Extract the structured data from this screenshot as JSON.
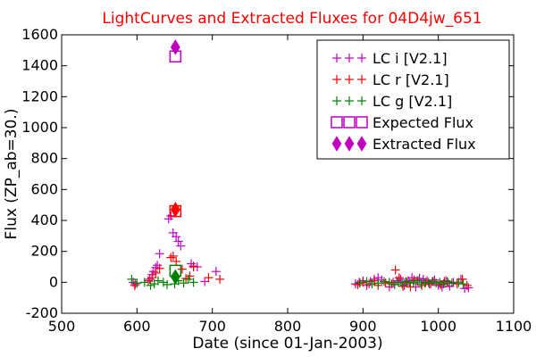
{
  "chart_data": {
    "type": "scatter",
    "title": "LightCurves and Extracted Fluxes for 04D4jw_651",
    "title_color": "#ff0000",
    "xlabel": "Date (since 01-Jan-2003)",
    "ylabel": "Flux (ZP_ab=30.)",
    "xlim": [
      500,
      1100
    ],
    "ylim": [
      -200,
      1600
    ],
    "xticks": [
      500,
      600,
      700,
      800,
      900,
      1000,
      1100
    ],
    "yticks": [
      -200,
      0,
      200,
      400,
      600,
      800,
      1000,
      1200,
      1400,
      1600
    ],
    "legend_position": "top-right",
    "series": [
      {
        "name": "LC i [V2.1]",
        "marker": "plus",
        "color": "#bf00bf",
        "points": [
          [
            595,
            0
          ],
          [
            598,
            -10
          ],
          [
            617,
            20
          ],
          [
            620,
            50
          ],
          [
            622,
            70
          ],
          [
            625,
            95
          ],
          [
            627,
            110
          ],
          [
            630,
            185
          ],
          [
            642,
            410
          ],
          [
            645,
            430
          ],
          [
            648,
            320
          ],
          [
            652,
            295
          ],
          [
            655,
            265
          ],
          [
            658,
            235
          ],
          [
            672,
            120
          ],
          [
            675,
            105
          ],
          [
            680,
            100
          ],
          [
            690,
            5
          ],
          [
            705,
            70
          ],
          [
            890,
            -10
          ],
          [
            895,
            0
          ],
          [
            900,
            10
          ],
          [
            905,
            -20
          ],
          [
            910,
            5
          ],
          [
            915,
            20
          ],
          [
            920,
            30
          ],
          [
            925,
            15
          ],
          [
            935,
            -30
          ],
          [
            940,
            0
          ],
          [
            945,
            10
          ],
          [
            950,
            20
          ],
          [
            955,
            -20
          ],
          [
            960,
            10
          ],
          [
            965,
            30
          ],
          [
            970,
            -30
          ],
          [
            975,
            25
          ],
          [
            980,
            20
          ],
          [
            985,
            10
          ],
          [
            990,
            -10
          ],
          [
            995,
            15
          ],
          [
            1000,
            -20
          ],
          [
            1005,
            -30
          ],
          [
            1010,
            10
          ],
          [
            1015,
            -25
          ],
          [
            1020,
            0
          ],
          [
            1030,
            20
          ],
          [
            1035,
            -40
          ],
          [
            1040,
            -35
          ]
        ]
      },
      {
        "name": "LC r [V2.1]",
        "marker": "plus",
        "color": "#ff0000",
        "points": [
          [
            597,
            -20
          ],
          [
            615,
            10
          ],
          [
            620,
            30
          ],
          [
            625,
            60
          ],
          [
            630,
            90
          ],
          [
            645,
            160
          ],
          [
            648,
            170
          ],
          [
            652,
            135
          ],
          [
            660,
            85
          ],
          [
            665,
            25
          ],
          [
            670,
            40
          ],
          [
            675,
            100
          ],
          [
            695,
            30
          ],
          [
            710,
            20
          ],
          [
            893,
            -15
          ],
          [
            900,
            0
          ],
          [
            908,
            -10
          ],
          [
            915,
            10
          ],
          [
            920,
            -20
          ],
          [
            930,
            -5
          ],
          [
            938,
            -10
          ],
          [
            943,
            80
          ],
          [
            948,
            30
          ],
          [
            953,
            -25
          ],
          [
            958,
            0
          ],
          [
            963,
            -30
          ],
          [
            968,
            15
          ],
          [
            972,
            10
          ],
          [
            978,
            -20
          ],
          [
            983,
            0
          ],
          [
            988,
            -10
          ],
          [
            993,
            5
          ],
          [
            1003,
            -15
          ],
          [
            1008,
            5
          ],
          [
            1013,
            -5
          ],
          [
            1025,
            -10
          ],
          [
            1032,
            20
          ],
          [
            1038,
            -20
          ]
        ]
      },
      {
        "name": "LC g [V2.1]",
        "marker": "plus",
        "color": "#008000",
        "points": [
          [
            593,
            20
          ],
          [
            600,
            -5
          ],
          [
            610,
            0
          ],
          [
            618,
            -20
          ],
          [
            623,
            -10
          ],
          [
            628,
            10
          ],
          [
            635,
            0
          ],
          [
            640,
            -15
          ],
          [
            650,
            -10
          ],
          [
            655,
            10
          ],
          [
            662,
            -5
          ],
          [
            668,
            20
          ],
          [
            675,
            0
          ],
          [
            896,
            -5
          ],
          [
            905,
            5
          ],
          [
            912,
            -10
          ],
          [
            920,
            -5
          ],
          [
            928,
            5
          ],
          [
            935,
            0
          ],
          [
            942,
            -15
          ],
          [
            947,
            0
          ],
          [
            952,
            -10
          ],
          [
            957,
            5
          ],
          [
            962,
            -5
          ],
          [
            967,
            0
          ],
          [
            973,
            10
          ],
          [
            977,
            -10
          ],
          [
            982,
            -5
          ],
          [
            987,
            0
          ],
          [
            992,
            5
          ],
          [
            997,
            -5
          ],
          [
            1002,
            0
          ],
          [
            1007,
            -10
          ],
          [
            1012,
            5
          ],
          [
            1018,
            -5
          ],
          [
            1027,
            0
          ],
          [
            1033,
            -10
          ]
        ]
      },
      {
        "name": "Expected Flux",
        "marker": "square",
        "color": "#bf00bf",
        "points": [
          [
            651,
            1460
          ],
          [
            651,
            460
          ],
          [
            651,
            75
          ]
        ],
        "point_colors": [
          "#bf00bf",
          "#ff0000",
          "#008000"
        ]
      },
      {
        "name": "Extracted Flux",
        "marker": "diamond",
        "color": "#bf00bf",
        "points": [
          [
            651,
            1520
          ],
          [
            651,
            470
          ],
          [
            651,
            35
          ]
        ],
        "point_colors": [
          "#bf00bf",
          "#ff0000",
          "#008000"
        ]
      }
    ]
  }
}
